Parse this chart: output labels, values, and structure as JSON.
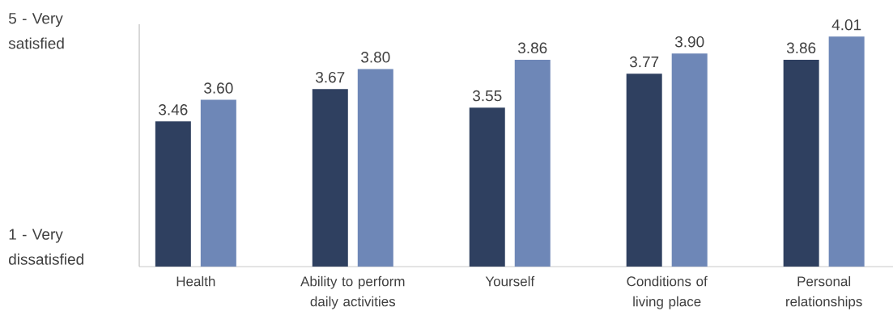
{
  "chart_data": {
    "type": "bar",
    "categories": [
      "Health",
      "Ability to perform daily activities",
      "Yourself",
      "Conditions of living place",
      "Personal relationships"
    ],
    "series": [
      {
        "color": "#2f4060",
        "values": [
          3.46,
          3.67,
          3.55,
          3.77,
          3.86
        ],
        "value_labels": [
          "3.46",
          "3.67",
          "3.55",
          "3.77",
          "3.86"
        ]
      },
      {
        "color": "#6e87b7",
        "values": [
          3.6,
          3.8,
          3.86,
          3.9,
          4.01
        ],
        "value_labels": [
          "3.60",
          "3.80",
          "3.86",
          "3.90",
          "4.01"
        ]
      }
    ],
    "ylim": [
      2.52,
      4.09
    ],
    "annotations": [
      "5 - Very satisfied",
      "1 - Very dissatisfied"
    ],
    "tick_labels": "x"
  }
}
